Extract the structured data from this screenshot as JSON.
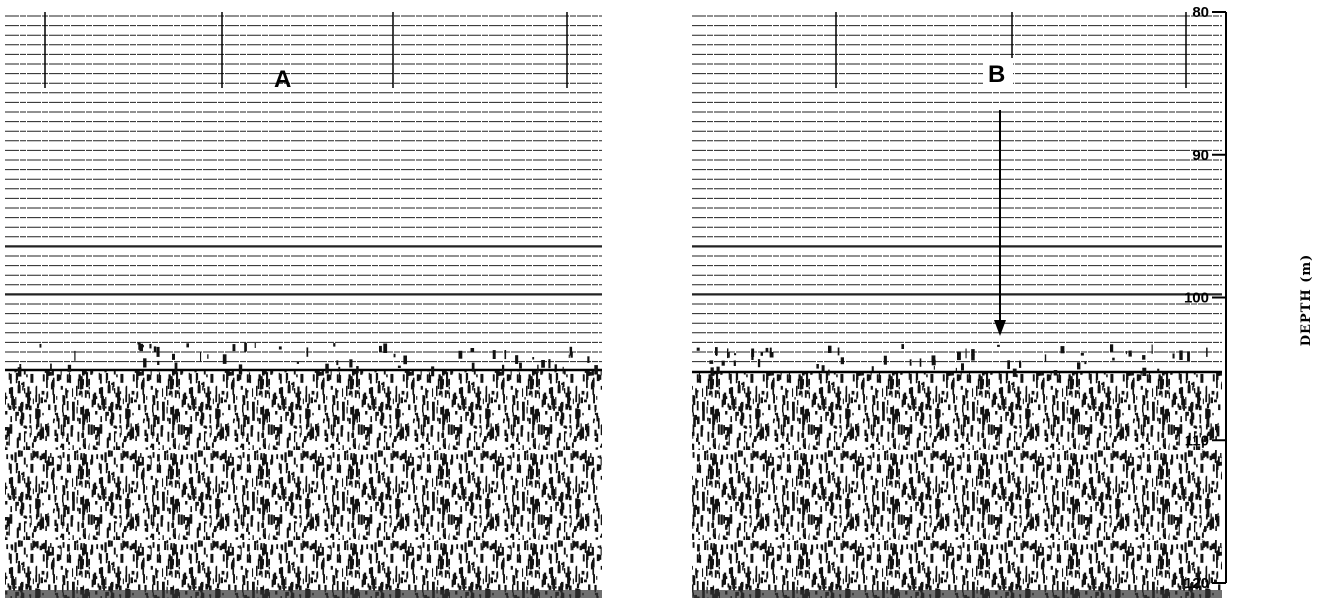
{
  "panels": [
    {
      "label": "A"
    },
    {
      "label": "B"
    }
  ],
  "depth_axis": {
    "label": "DEPTH (m)",
    "lim": [
      80,
      120
    ],
    "ticks": [
      80,
      90,
      100,
      110,
      120
    ]
  }
}
